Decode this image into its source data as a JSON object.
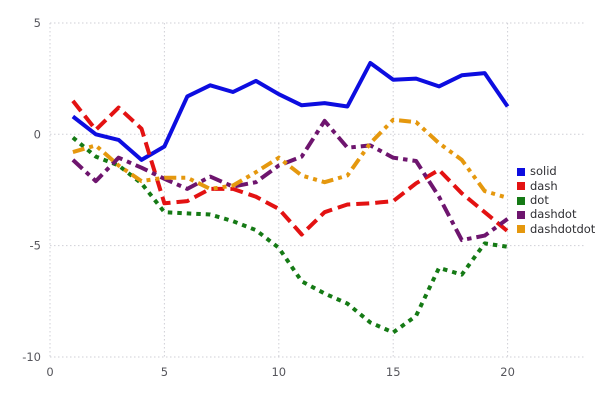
{
  "chart_data": {
    "type": "line",
    "title": "",
    "xlabel": "",
    "ylabel": "",
    "xlim": [
      0,
      20
    ],
    "ylim": [
      -10,
      5
    ],
    "x_ticks": [
      0,
      5,
      10,
      15,
      20
    ],
    "y_ticks": [
      5,
      0,
      -5,
      -10
    ],
    "grid": "dotted-both-axes",
    "grid_color": "#cfcfd6",
    "tick_label_color": "#56565c",
    "background": "#ffffff",
    "legend_position": "right-outside-middle",
    "line_width": 4,
    "x": [
      1,
      2,
      3,
      4,
      5,
      6,
      7,
      8,
      9,
      10,
      11,
      12,
      13,
      14,
      15,
      16,
      17,
      18,
      19,
      20
    ],
    "series": [
      {
        "name": "solid",
        "color": "#0d0de0",
        "dash_style": "solid",
        "values": [
          0.8,
          0.0,
          -0.25,
          -1.15,
          -0.55,
          1.7,
          2.2,
          1.9,
          2.4,
          1.8,
          1.3,
          1.4,
          1.25,
          3.2,
          2.45,
          2.5,
          2.15,
          2.65,
          2.75,
          1.25
        ]
      },
      {
        "name": "dash",
        "color": "#e31212",
        "dash_style": "dash",
        "values": [
          1.5,
          0.2,
          1.2,
          0.25,
          -3.1,
          -3.0,
          -2.45,
          -2.45,
          -2.8,
          -3.35,
          -4.5,
          -3.5,
          -3.15,
          -3.1,
          -3.0,
          -2.2,
          -1.6,
          -2.65,
          -3.5,
          -4.35
        ]
      },
      {
        "name": "dot",
        "color": "#157a15",
        "dash_style": "dot",
        "values": [
          -0.15,
          -1.0,
          -1.4,
          -2.2,
          -3.5,
          -3.55,
          -3.6,
          -3.9,
          -4.3,
          -5.1,
          -6.6,
          -7.15,
          -7.6,
          -8.45,
          -8.9,
          -8.15,
          -6.0,
          -6.3,
          -4.9,
          -5.05
        ]
      },
      {
        "name": "dashdot",
        "color": "#6e156e",
        "dash_style": "dashdot",
        "values": [
          -1.15,
          -2.1,
          -1.05,
          -1.5,
          -2.0,
          -2.45,
          -1.9,
          -2.35,
          -2.15,
          -1.4,
          -1.0,
          0.6,
          -0.6,
          -0.5,
          -1.05,
          -1.2,
          -2.8,
          -4.75,
          -4.55,
          -3.8
        ]
      },
      {
        "name": "dashdotdot",
        "color": "#e5980e",
        "dash_style": "dashdotdot",
        "values": [
          -0.8,
          -0.5,
          -1.4,
          -2.1,
          -1.95,
          -1.95,
          -2.45,
          -2.3,
          -1.7,
          -1.05,
          -1.85,
          -2.15,
          -1.85,
          -0.4,
          0.65,
          0.55,
          -0.4,
          -1.15,
          -2.55,
          -2.85
        ]
      }
    ],
    "legend": [
      "solid",
      "dash",
      "dot",
      "dashdot",
      "dashdotdot"
    ]
  }
}
